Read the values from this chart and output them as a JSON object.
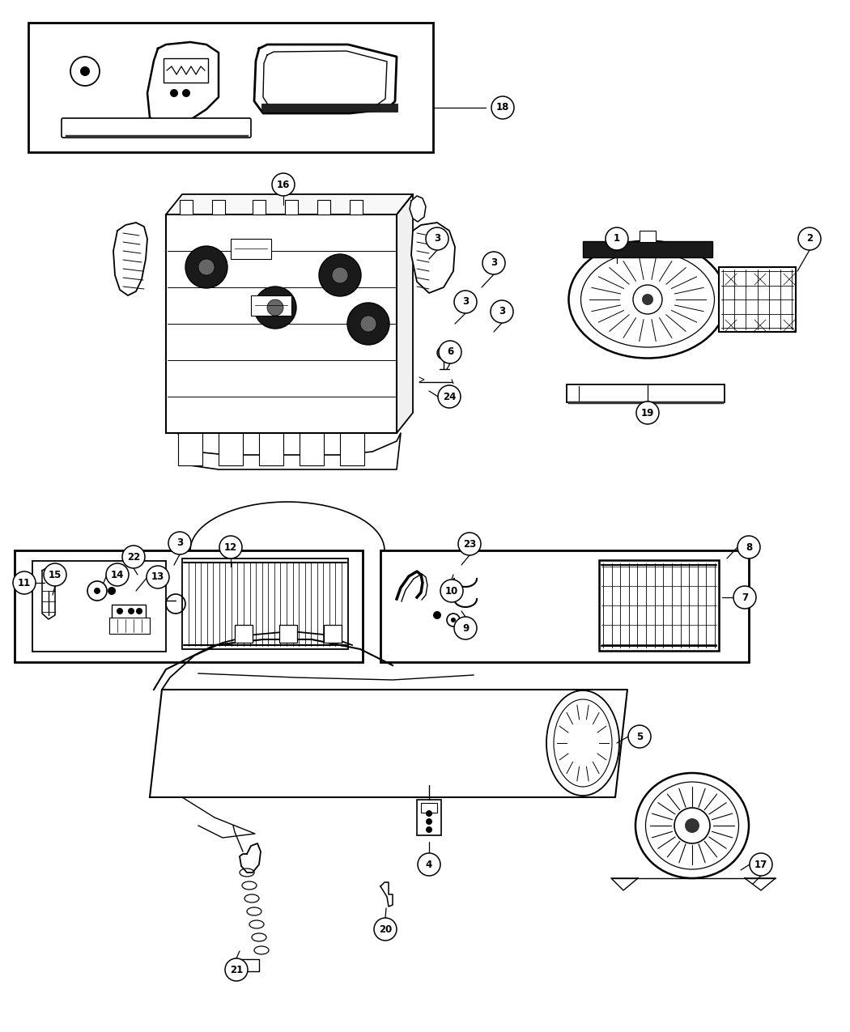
{
  "bg_color": "#ffffff",
  "line_color": "#000000",
  "fig_width": 10.5,
  "fig_height": 12.75,
  "dpi": 100
}
